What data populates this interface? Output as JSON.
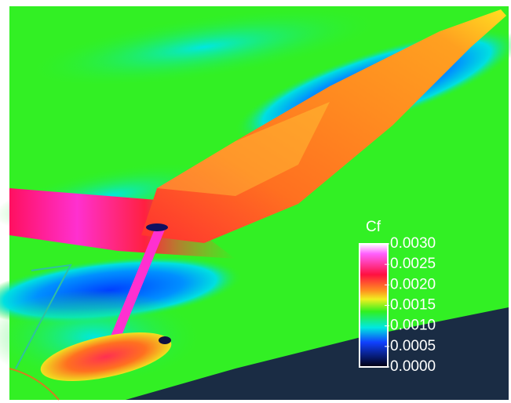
{
  "colorbar": {
    "title": "Cf",
    "range": [
      0,
      0.003
    ],
    "ticks": [
      {
        "value": 0.003,
        "label": "0.0030"
      },
      {
        "value": 0.0025,
        "label": "0.0025"
      },
      {
        "value": 0.002,
        "label": "0.0020"
      },
      {
        "value": 0.0015,
        "label": "0.0015"
      },
      {
        "value": 0.001,
        "label": "0.0010"
      },
      {
        "value": 0.0005,
        "label": "0.0005"
      },
      {
        "value": 0,
        "label": "0.0000"
      }
    ]
  }
}
